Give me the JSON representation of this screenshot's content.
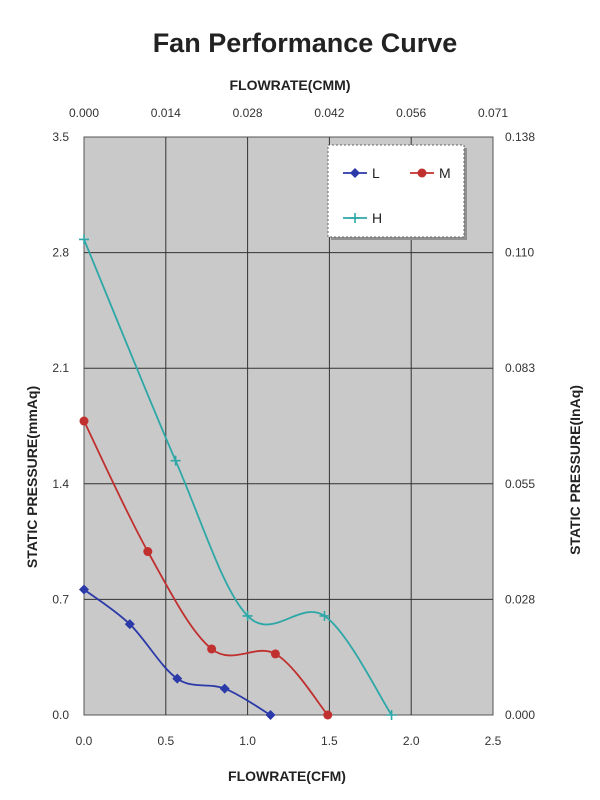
{
  "chart_data": {
    "type": "line",
    "title": "Fan Performance Curve",
    "xlabel": "FLOWRATE(CFM)",
    "x2label": "FLOWRATE(CMM)",
    "ylabel": "STATIC PRESSURE(mmAq)",
    "y2label": "STATIC PRESSURE(InAq)",
    "xlim": [
      0,
      2.5
    ],
    "ylim": [
      0,
      3.5
    ],
    "x_ticks": [
      "0.0",
      "0.5",
      "1.0",
      "1.5",
      "2.0",
      "2.5"
    ],
    "y_ticks": [
      "0.0",
      "0.7",
      "1.4",
      "2.1",
      "2.8",
      "3.5"
    ],
    "x2_ticks": [
      "0.000",
      "0.014",
      "0.028",
      "0.042",
      "0.056",
      "0.071"
    ],
    "y2_ticks": [
      "0.000",
      "0.028",
      "0.055",
      "0.083",
      "0.110",
      "0.138"
    ],
    "grid": true,
    "legend_position": "top-right",
    "series": [
      {
        "name": "L",
        "color": "#2b3aa8",
        "marker": "diamond",
        "x": [
          0.0,
          0.28,
          0.57,
          0.86,
          1.14
        ],
        "y": [
          0.76,
          0.55,
          0.22,
          0.16,
          0.0
        ]
      },
      {
        "name": "M",
        "color": "#c0302f",
        "marker": "circle",
        "x": [
          0.0,
          0.39,
          0.78,
          1.17,
          1.49
        ],
        "y": [
          1.78,
          0.99,
          0.4,
          0.37,
          0.0
        ]
      },
      {
        "name": "H",
        "color": "#2ea7a7",
        "marker": "plus",
        "x": [
          0.0,
          0.56,
          1.0,
          1.47,
          1.88
        ],
        "y": [
          2.88,
          1.54,
          0.6,
          0.6,
          0.0
        ]
      }
    ]
  }
}
